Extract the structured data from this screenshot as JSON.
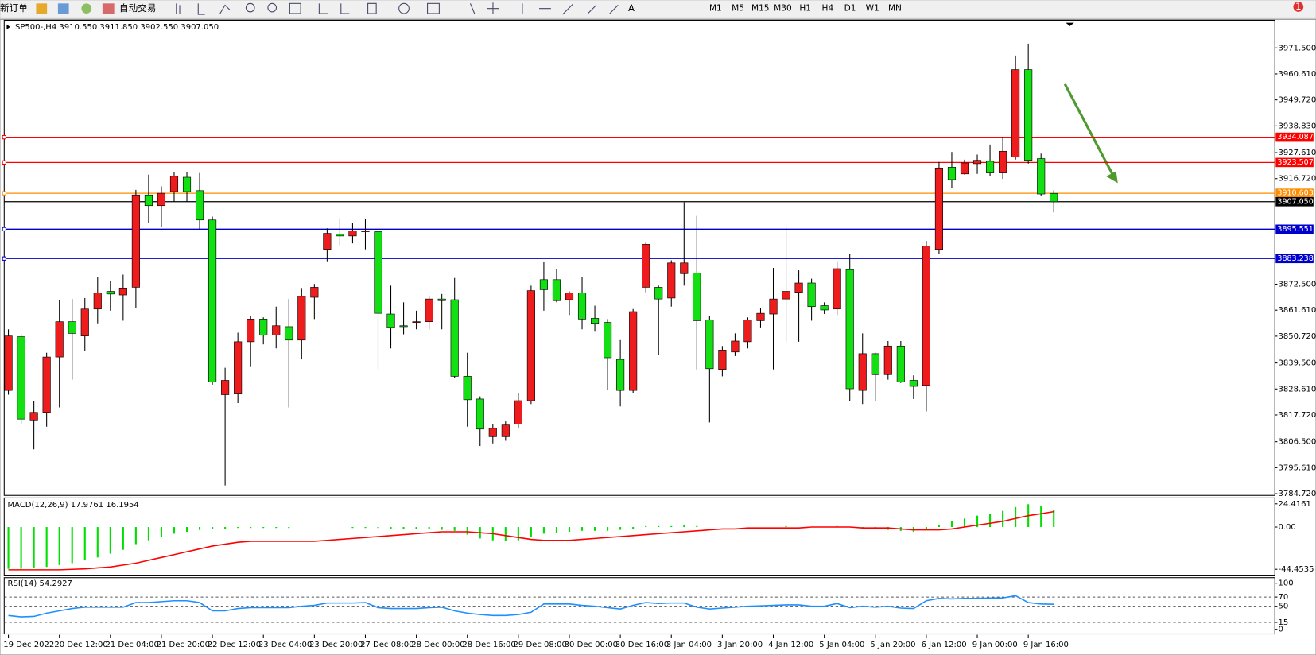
{
  "toolbar": {
    "new_order": "新订单",
    "auto_trading": "自动交易",
    "timeframes": [
      "M1",
      "M5",
      "M15",
      "M30",
      "H1",
      "H4",
      "D1",
      "W1",
      "MN"
    ],
    "notification": "1"
  },
  "chart_data": [
    {
      "type": "candlestick",
      "title": "SP500-,H4 3910.550 3911.850 3902.550 3907.050",
      "categories": [
        "19 Dec 2022",
        null,
        null,
        null,
        "20 Dec 12:00",
        null,
        null,
        null,
        "21 Dec 04:00",
        null,
        null,
        null,
        "21 Dec 20:00",
        null,
        null,
        null,
        "22 Dec 12:00",
        null,
        null,
        null,
        "23 Dec 04:00",
        null,
        null,
        null,
        "23 Dec 20:00",
        null,
        null,
        null,
        "27 Dec 08:00",
        null,
        null,
        null,
        "28 Dec 00:00",
        null,
        null,
        null,
        "28 Dec 16:00",
        null,
        null,
        null,
        "29 Dec 08:00",
        null,
        null,
        null,
        "30 Dec 00:00",
        null,
        null,
        null,
        "30 Dec 16:00",
        null,
        null,
        null,
        "3 Jan 04:00",
        null,
        null,
        null,
        "3 Jan 20:00",
        null,
        null,
        null,
        "4 Jan 12:00",
        null,
        null,
        null,
        "5 Jan 04:00",
        null,
        null,
        null,
        "5 Jan 20:00",
        null,
        null,
        null,
        "6 Jan 12:00",
        null,
        null,
        null,
        "9 Jan 00:00",
        null,
        null,
        null,
        "9 Jan 16:00",
        null,
        null
      ],
      "open": [
        3828.0,
        3850.5,
        3815.6,
        3818.8,
        3842.0,
        3856.8,
        3850.8,
        3862.1,
        3869.5,
        3868.0,
        3871.2,
        3909.9,
        3905.4,
        3911.3,
        3917.3,
        3911.7,
        3899.4,
        3826.2,
        3826.5,
        3848.4,
        3857.9,
        3851.2,
        3854.7,
        3849.1,
        3867.0,
        3887.1,
        3893.4,
        3892.7,
        3894.5,
        3894.5,
        3860.0,
        3855.1,
        3856.5,
        3856.8,
        3866.3,
        3866.0,
        3833.9,
        3824.4,
        3808.6,
        3808.6,
        3813.9,
        3823.7,
        3874.4,
        3874.4,
        3866.0,
        3868.8,
        3858.2,
        3856.5,
        3841.0,
        3828.0,
        3871.2,
        3871.2,
        3866.7,
        3876.9,
        3877.2,
        3857.5,
        3836.8,
        3844.1,
        3848.4,
        3857.2,
        3860.0,
        3866.3,
        3869.1,
        3873.0,
        3863.5,
        3862.1,
        3878.6,
        3828.0,
        3843.4,
        3834.6,
        3846.6,
        3832.2,
        3830.1,
        3887.1,
        3921.5,
        3918.7,
        3923.0,
        3924.0,
        3919.1,
        3925.8,
        3962.4,
        3925.1,
        3910.55
      ],
      "high": [
        3853.6,
        3851.5,
        3823.4,
        3843.8,
        3866.0,
        3866.3,
        3866.7,
        3875.5,
        3873.7,
        3876.5,
        3912.0,
        3918.4,
        3913.5,
        3919.4,
        3919.4,
        3919.1,
        3900.8,
        3837.5,
        3852.2,
        3859.3,
        3858.6,
        3863.1,
        3866.3,
        3870.9,
        3872.6,
        3895.9,
        3900.1,
        3898.3,
        3899.7,
        3895.9,
        3871.9,
        3864.9,
        3861.4,
        3867.7,
        3868.4,
        3875.1,
        3843.8,
        3825.5,
        3813.9,
        3815.0,
        3826.9,
        3871.9,
        3881.8,
        3879.0,
        3869.5,
        3875.5,
        3863.5,
        3857.9,
        3849.1,
        3862.1,
        3889.9,
        3871.9,
        3882.5,
        3906.8,
        3901.1,
        3859.3,
        3846.6,
        3851.9,
        3858.6,
        3862.4,
        3879.3,
        3896.2,
        3878.3,
        3874.8,
        3864.9,
        3882.1,
        3885.3,
        3851.9,
        3843.8,
        3848.7,
        3848.7,
        3834.3,
        3890.6,
        3923.7,
        3927.9,
        3924.7,
        3926.8,
        3931.0,
        3934.2,
        3968.3,
        3973.3,
        3927.2,
        3911.85
      ],
      "low": [
        3826.2,
        3813.9,
        3803.3,
        3812.8,
        3820.9,
        3832.5,
        3844.5,
        3856.1,
        3861.4,
        3857.2,
        3862.4,
        3898.0,
        3896.6,
        3907.1,
        3907.1,
        3895.5,
        3830.4,
        3788.2,
        3822.7,
        3837.8,
        3847.3,
        3845.6,
        3820.9,
        3841.0,
        3857.9,
        3882.1,
        3888.8,
        3889.6,
        3887.1,
        3836.8,
        3845.6,
        3851.5,
        3853.6,
        3853.6,
        3853.6,
        3833.2,
        3812.8,
        3804.7,
        3805.8,
        3806.9,
        3812.1,
        3822.3,
        3861.4,
        3864.9,
        3859.6,
        3853.6,
        3852.6,
        3828.3,
        3821.3,
        3826.9,
        3869.1,
        3842.7,
        3863.1,
        3871.9,
        3836.8,
        3814.6,
        3833.9,
        3842.4,
        3845.6,
        3854.4,
        3836.8,
        3848.4,
        3848.4,
        3857.2,
        3860.0,
        3859.6,
        3823.4,
        3822.3,
        3823.4,
        3832.5,
        3831.1,
        3824.4,
        3819.2,
        3885.3,
        3912.7,
        3918.4,
        3918.7,
        3917.7,
        3916.6,
        3924.7,
        3923.0,
        3909.6,
        3902.55
      ],
      "close": [
        3850.8,
        3816.0,
        3818.8,
        3842.0,
        3856.8,
        3851.9,
        3862.1,
        3868.8,
        3868.4,
        3870.9,
        3909.9,
        3905.4,
        3910.6,
        3917.7,
        3911.3,
        3899.4,
        3831.5,
        3832.2,
        3848.4,
        3857.9,
        3851.2,
        3855.1,
        3849.1,
        3867.4,
        3871.2,
        3893.8,
        3892.7,
        3894.8,
        3894.8,
        3860.3,
        3854.4,
        3854.7,
        3856.8,
        3866.3,
        3865.6,
        3833.9,
        3824.1,
        3811.8,
        3812.1,
        3813.5,
        3823.7,
        3869.8,
        3870.2,
        3865.6,
        3868.8,
        3857.9,
        3856.1,
        3841.7,
        3828.0,
        3861.0,
        3889.2,
        3866.3,
        3881.4,
        3881.4,
        3857.2,
        3837.1,
        3844.9,
        3848.7,
        3857.5,
        3860.3,
        3866.3,
        3869.5,
        3873.0,
        3863.1,
        3861.7,
        3879.0,
        3828.7,
        3843.4,
        3834.6,
        3846.6,
        3831.5,
        3829.7,
        3888.5,
        3921.2,
        3916.3,
        3923.3,
        3924.4,
        3919.1,
        3928.2,
        3962.4,
        3924.4,
        3910.3,
        3907.05
      ],
      "up_color": "#ee1c1c",
      "down_color": "#13e013",
      "ylim": [
        3784.0,
        3983.1
      ],
      "yticks": [
        {
          "value": 3971.5,
          "label": "3971.500"
        },
        {
          "value": 3960.61,
          "label": "3960.610"
        },
        {
          "value": 3949.72,
          "label": "3949.720"
        },
        {
          "value": 3938.83,
          "label": "3938.830"
        },
        {
          "value": 3927.61,
          "label": "3927.610"
        },
        {
          "value": 3916.72,
          "label": "3916.720"
        },
        {
          "value": 3872.5,
          "label": "3872.500"
        },
        {
          "value": 3861.61,
          "label": "3861.610"
        },
        {
          "value": 3850.72,
          "label": "3850.720"
        },
        {
          "value": 3839.5,
          "label": "3839.500"
        },
        {
          "value": 3828.61,
          "label": "3828.610"
        },
        {
          "value": 3817.72,
          "label": "3817.720"
        },
        {
          "value": 3806.5,
          "label": "3806.500"
        },
        {
          "value": 3795.61,
          "label": "3795.610"
        },
        {
          "value": 3784.72,
          "label": "3784.720"
        }
      ],
      "hlines": [
        {
          "value": 3934.087,
          "color": "#ff0000"
        },
        {
          "value": 3923.507,
          "color": "#ff0000"
        },
        {
          "value": 3910.603,
          "color": "#ff8c00"
        },
        {
          "value": 3907.05,
          "label": "3907.050",
          "color": "#000000"
        },
        {
          "value": 3895.551,
          "color": "#0000cc"
        },
        {
          "value": 3883.238,
          "color": "#0000cc"
        }
      ]
    },
    {
      "type": "macd",
      "title": "MACD(12,26,9) 17.9761 16.1954",
      "values": [
        -44,
        -44,
        -43,
        -42,
        -40,
        -38,
        -35,
        -32,
        -28,
        -24,
        -18,
        -14,
        -10,
        -7,
        -5,
        -3,
        -2,
        -2,
        -1,
        -1,
        -1,
        -1,
        -1,
        0,
        0,
        0,
        0,
        -1,
        -1,
        -1,
        -2,
        -2,
        -2,
        -2,
        -3,
        -4,
        -8,
        -12,
        -14,
        -15,
        -14,
        -10,
        -7,
        -6,
        -5,
        -4,
        -4,
        -4,
        -3,
        -2,
        1,
        1,
        1,
        2,
        1,
        0,
        0,
        0,
        0,
        0,
        0,
        1,
        0,
        0,
        0,
        1,
        0,
        -1,
        -2,
        -3,
        -4,
        -5,
        -2,
        2,
        6,
        9,
        12,
        14,
        17,
        21,
        24,
        22,
        17.9761
      ],
      "color": "#00e000",
      "signal": {
        "values": [
          -45,
          -45,
          -45,
          -45,
          -45,
          -44.5,
          -44,
          -43,
          -42,
          -40,
          -38,
          -35,
          -32,
          -29,
          -26,
          -23,
          -20,
          -18,
          -16,
          -15,
          -15,
          -15,
          -15,
          -15,
          -15,
          -14,
          -13,
          -12,
          -11,
          -10,
          -9,
          -8,
          -7,
          -6,
          -5,
          -5,
          -5,
          -6,
          -7,
          -9,
          -11,
          -13,
          -14,
          -14,
          -14,
          -13,
          -12,
          -11,
          -10,
          -9,
          -8,
          -7,
          -6,
          -5,
          -4,
          -3,
          -2,
          -2,
          -1,
          -1,
          -1,
          -1,
          -1,
          0,
          0,
          0,
          0,
          -1,
          -1,
          -1,
          -2,
          -3,
          -3,
          -3,
          -2,
          0,
          2,
          4,
          6,
          9,
          12,
          14,
          16.1954
        ],
        "color": "#ff0000"
      },
      "ylim": [
        -50.6,
        30.6
      ],
      "yticks": [
        24.4161,
        {
          "value": 0,
          "label": "0.00"
        },
        -44.4535
      ]
    },
    {
      "type": "line",
      "title": "RSI(14) 54.2927",
      "values": [
        30,
        27,
        28,
        35,
        40,
        45,
        48,
        48,
        48,
        48,
        58,
        58,
        60,
        62,
        62,
        58,
        40,
        40,
        45,
        47,
        47,
        47,
        47,
        50,
        52,
        57,
        57,
        57,
        58,
        47,
        45,
        45,
        45,
        47,
        48,
        40,
        35,
        32,
        30,
        30,
        32,
        37,
        55,
        55,
        55,
        52,
        50,
        47,
        44,
        52,
        58,
        56,
        57,
        57,
        48,
        44,
        46,
        48,
        50,
        51,
        52,
        53,
        53,
        50,
        50,
        56,
        47,
        50,
        48,
        50,
        46,
        45,
        62,
        67,
        66,
        67,
        67,
        68,
        68,
        73,
        58,
        55,
        54.2927
      ],
      "color": "#1e8fff",
      "ylim": [
        -10,
        112
      ],
      "yticks": [
        100,
        70,
        50,
        15,
        0
      ]
    }
  ]
}
